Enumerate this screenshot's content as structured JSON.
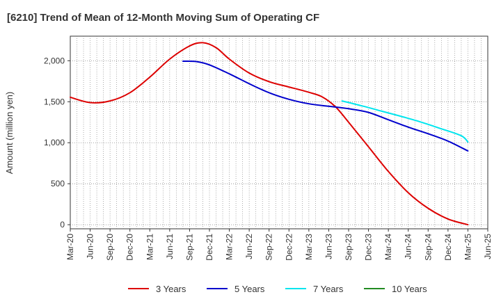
{
  "chart_data": {
    "type": "line",
    "title": "[6210]  Trend of Mean of 12-Month Moving Sum of Operating CF",
    "xlabel": "",
    "ylabel": "Amount (million yen)",
    "ylim": [
      -50,
      2300
    ],
    "y_ticks": [
      0,
      500,
      1000,
      1500,
      2000
    ],
    "y_tick_labels": [
      "0",
      "500",
      "1,000",
      "1,500",
      "2,000"
    ],
    "x_tick_labels": [
      "Mar-20",
      "Jun-20",
      "Sep-20",
      "Dec-20",
      "Mar-21",
      "Jun-21",
      "Sep-21",
      "Dec-21",
      "Mar-22",
      "Jun-22",
      "Sep-22",
      "Dec-22",
      "Mar-23",
      "Jun-23",
      "Sep-23",
      "Dec-23",
      "Mar-24",
      "Jun-24",
      "Sep-24",
      "Dec-24",
      "Mar-25",
      "Jun-25"
    ],
    "x_range_months": [
      0,
      63
    ],
    "grid": true,
    "legend_position": "bottom",
    "series": [
      {
        "name": "3 Years",
        "color": "#dd0000",
        "points": [
          [
            0,
            1555
          ],
          [
            3,
            1490
          ],
          [
            6,
            1510
          ],
          [
            9,
            1610
          ],
          [
            12,
            1800
          ],
          [
            15,
            2020
          ],
          [
            18,
            2180
          ],
          [
            20,
            2220
          ],
          [
            22,
            2160
          ],
          [
            24,
            2020
          ],
          [
            27,
            1850
          ],
          [
            30,
            1745
          ],
          [
            33,
            1680
          ],
          [
            36,
            1615
          ],
          [
            38,
            1560
          ],
          [
            40,
            1440
          ],
          [
            42,
            1250
          ],
          [
            45,
            950
          ],
          [
            48,
            650
          ],
          [
            51,
            390
          ],
          [
            54,
            200
          ],
          [
            57,
            70
          ],
          [
            60,
            0
          ]
        ]
      },
      {
        "name": "5 Years",
        "color": "#0000cc",
        "points": [
          [
            17,
            1995
          ],
          [
            19,
            1990
          ],
          [
            21,
            1950
          ],
          [
            24,
            1840
          ],
          [
            27,
            1720
          ],
          [
            30,
            1610
          ],
          [
            33,
            1530
          ],
          [
            36,
            1475
          ],
          [
            39,
            1445
          ],
          [
            42,
            1415
          ],
          [
            45,
            1370
          ],
          [
            48,
            1280
          ],
          [
            51,
            1190
          ],
          [
            54,
            1110
          ],
          [
            57,
            1020
          ],
          [
            60,
            900
          ]
        ]
      },
      {
        "name": "7 Years",
        "color": "#00e5ee",
        "points": [
          [
            41,
            1510
          ],
          [
            44,
            1450
          ],
          [
            47,
            1385
          ],
          [
            50,
            1320
          ],
          [
            53,
            1250
          ],
          [
            56,
            1170
          ],
          [
            59,
            1085
          ],
          [
            60,
            1010
          ]
        ]
      },
      {
        "name": "10 Years",
        "color": "#228b22",
        "points": []
      }
    ]
  }
}
